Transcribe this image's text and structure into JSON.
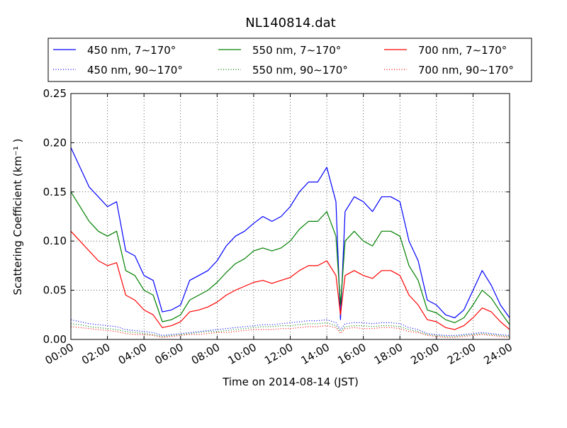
{
  "chart_data": {
    "type": "line",
    "title": "NL140814.dat",
    "xlabel": "Time on 2014-08-14 (JST)",
    "ylabel": "Scattering Coefficient (km⁻¹ )",
    "xlim": [
      "00:00",
      "24:00"
    ],
    "ylim": [
      0,
      0.25
    ],
    "x_ticks": [
      "00:00",
      "02:00",
      "04:00",
      "06:00",
      "08:00",
      "10:00",
      "12:00",
      "14:00",
      "16:00",
      "18:00",
      "20:00",
      "22:00",
      "24:00"
    ],
    "y_ticks": [
      "0.00",
      "0.05",
      "0.10",
      "0.15",
      "0.20",
      "0.25"
    ],
    "grid": true,
    "legend_location": "top",
    "x": [
      "00:00",
      "00:30",
      "01:00",
      "01:30",
      "02:00",
      "02:30",
      "03:00",
      "03:30",
      "04:00",
      "04:30",
      "05:00",
      "05:30",
      "06:00",
      "06:30",
      "07:00",
      "07:30",
      "08:00",
      "08:30",
      "09:00",
      "09:30",
      "10:00",
      "10:30",
      "11:00",
      "11:30",
      "12:00",
      "12:30",
      "13:00",
      "13:30",
      "14:00",
      "14:30",
      "14:45",
      "15:00",
      "15:30",
      "16:00",
      "16:30",
      "17:00",
      "17:30",
      "18:00",
      "18:30",
      "19:00",
      "19:30",
      "20:00",
      "20:30",
      "21:00",
      "21:30",
      "22:00",
      "22:30",
      "23:00",
      "23:30",
      "24:00"
    ],
    "series": [
      {
        "name": "450 nm, 7∼170°",
        "color": "#0000ff",
        "style": "solid",
        "values": [
          0.195,
          0.175,
          0.155,
          0.145,
          0.135,
          0.14,
          0.09,
          0.085,
          0.065,
          0.06,
          0.028,
          0.03,
          0.035,
          0.06,
          0.065,
          0.07,
          0.08,
          0.095,
          0.105,
          0.11,
          0.118,
          0.125,
          0.12,
          0.125,
          0.135,
          0.15,
          0.16,
          0.16,
          0.175,
          0.14,
          0.02,
          0.13,
          0.145,
          0.14,
          0.13,
          0.145,
          0.145,
          0.14,
          0.1,
          0.08,
          0.04,
          0.035,
          0.025,
          0.022,
          0.03,
          0.05,
          0.07,
          0.055,
          0.035,
          0.022
        ]
      },
      {
        "name": "450 nm, 90∼170°",
        "color": "#0000ff",
        "style": "dotted",
        "values": [
          0.02,
          0.018,
          0.016,
          0.015,
          0.014,
          0.013,
          0.01,
          0.009,
          0.008,
          0.007,
          0.004,
          0.005,
          0.006,
          0.007,
          0.008,
          0.009,
          0.01,
          0.011,
          0.012,
          0.013,
          0.014,
          0.015,
          0.015,
          0.016,
          0.017,
          0.018,
          0.019,
          0.019,
          0.02,
          0.017,
          0.01,
          0.016,
          0.017,
          0.017,
          0.016,
          0.017,
          0.017,
          0.016,
          0.012,
          0.01,
          0.006,
          0.005,
          0.004,
          0.004,
          0.005,
          0.006,
          0.007,
          0.006,
          0.005,
          0.004
        ]
      },
      {
        "name": "550 nm, 7∼170°",
        "color": "#008000",
        "style": "solid",
        "values": [
          0.15,
          0.135,
          0.12,
          0.11,
          0.105,
          0.11,
          0.07,
          0.065,
          0.05,
          0.045,
          0.018,
          0.02,
          0.025,
          0.04,
          0.045,
          0.05,
          0.058,
          0.068,
          0.077,
          0.082,
          0.09,
          0.093,
          0.09,
          0.093,
          0.1,
          0.112,
          0.12,
          0.12,
          0.13,
          0.105,
          0.035,
          0.1,
          0.11,
          0.1,
          0.095,
          0.11,
          0.11,
          0.105,
          0.075,
          0.06,
          0.03,
          0.027,
          0.02,
          0.017,
          0.022,
          0.035,
          0.05,
          0.042,
          0.028,
          0.015
        ]
      },
      {
        "name": "550 nm, 90∼170°",
        "color": "#008000",
        "style": "dotted",
        "values": [
          0.016,
          0.015,
          0.013,
          0.012,
          0.011,
          0.01,
          0.008,
          0.007,
          0.006,
          0.005,
          0.003,
          0.004,
          0.005,
          0.006,
          0.007,
          0.008,
          0.008,
          0.009,
          0.01,
          0.011,
          0.012,
          0.013,
          0.013,
          0.014,
          0.014,
          0.015,
          0.016,
          0.016,
          0.017,
          0.014,
          0.008,
          0.013,
          0.014,
          0.014,
          0.013,
          0.014,
          0.014,
          0.013,
          0.01,
          0.008,
          0.005,
          0.004,
          0.003,
          0.003,
          0.004,
          0.005,
          0.006,
          0.005,
          0.004,
          0.003
        ]
      },
      {
        "name": "700 nm, 7∼170°",
        "color": "#ff0000",
        "style": "solid",
        "values": [
          0.11,
          0.1,
          0.09,
          0.08,
          0.075,
          0.078,
          0.045,
          0.04,
          0.03,
          0.025,
          0.012,
          0.014,
          0.018,
          0.028,
          0.03,
          0.033,
          0.038,
          0.045,
          0.05,
          0.054,
          0.058,
          0.06,
          0.057,
          0.06,
          0.063,
          0.07,
          0.075,
          0.075,
          0.08,
          0.065,
          0.025,
          0.065,
          0.07,
          0.065,
          0.062,
          0.07,
          0.07,
          0.065,
          0.045,
          0.035,
          0.02,
          0.018,
          0.012,
          0.01,
          0.014,
          0.022,
          0.032,
          0.028,
          0.018,
          0.01
        ]
      },
      {
        "name": "700 nm, 90∼170°",
        "color": "#ff0000",
        "style": "dotted",
        "values": [
          0.013,
          0.012,
          0.011,
          0.01,
          0.009,
          0.008,
          0.006,
          0.005,
          0.005,
          0.004,
          0.002,
          0.003,
          0.004,
          0.005,
          0.005,
          0.006,
          0.007,
          0.007,
          0.008,
          0.009,
          0.01,
          0.01,
          0.01,
          0.011,
          0.011,
          0.012,
          0.013,
          0.013,
          0.014,
          0.012,
          0.006,
          0.011,
          0.012,
          0.011,
          0.011,
          0.012,
          0.012,
          0.011,
          0.008,
          0.007,
          0.004,
          0.003,
          0.002,
          0.002,
          0.003,
          0.004,
          0.005,
          0.004,
          0.003,
          0.002
        ]
      }
    ]
  }
}
